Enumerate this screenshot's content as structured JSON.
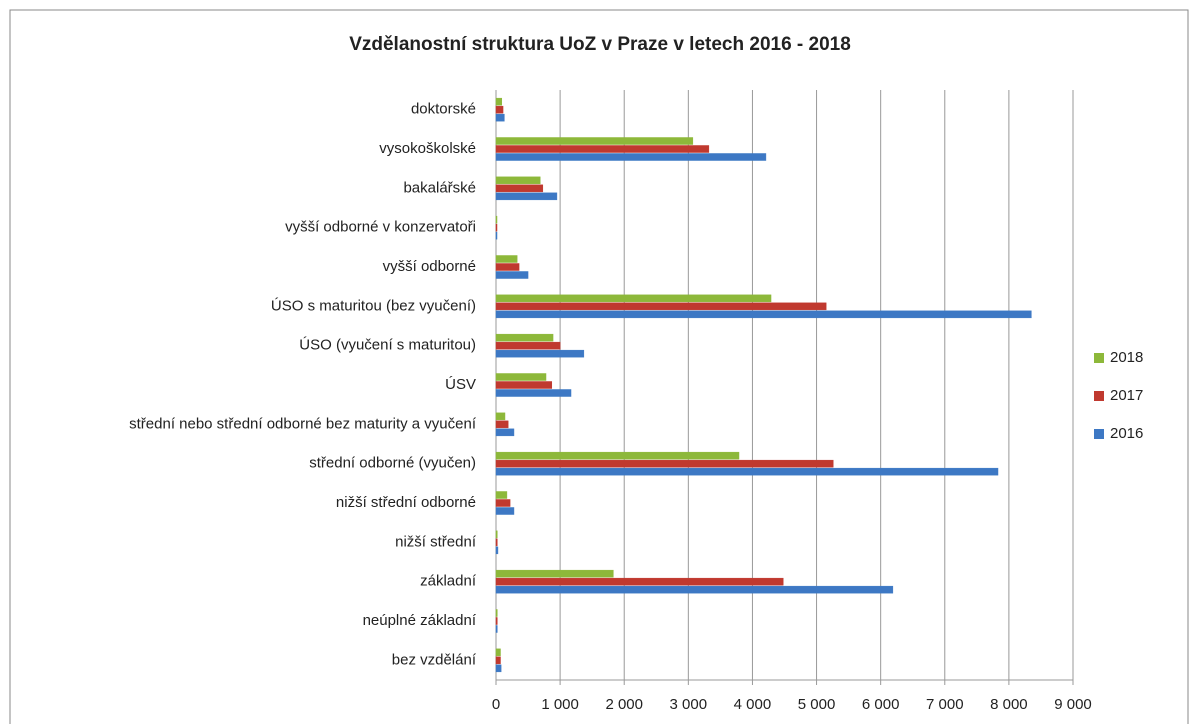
{
  "chart_data": {
    "type": "bar",
    "orientation": "horizontal",
    "title": "Vzdělanostní struktura UoZ v Praze v letech 2016 - 2018",
    "categories": [
      "doktorské",
      "vysokoškolské",
      "bakalářské",
      "vyšší odborné v konzervatoři",
      "vyšší odborné",
      "ÚSO s maturitou (bez vyučení)",
      "ÚSO (vyučení s maturitou)",
      "ÚSV",
      "střední nebo střední odborné bez maturity a vyučení",
      "střední odborné (vyučen)",
      "nižší střední odborné",
      "nižší střední",
      "základní",
      "neúplné základní",
      "bez vzdělání"
    ],
    "series": [
      {
        "name": "2018",
        "color": "#8db83a",
        "values": [
          90,
          3070,
          690,
          10,
          330,
          4290,
          890,
          780,
          140,
          3790,
          170,
          20,
          1830,
          20,
          70
        ]
      },
      {
        "name": "2017",
        "color": "#c0392f",
        "values": [
          110,
          3320,
          730,
          10,
          360,
          5150,
          1000,
          870,
          190,
          5260,
          220,
          20,
          4480,
          20,
          70
        ]
      },
      {
        "name": "2016",
        "color": "#3d78c4",
        "values": [
          130,
          4210,
          950,
          10,
          500,
          8350,
          1370,
          1170,
          280,
          7830,
          280,
          30,
          6190,
          20,
          80
        ]
      }
    ],
    "xlim": [
      0,
      9000
    ],
    "xticks": [
      0,
      {
        "value": 1000,
        "label": "1 000"
      },
      {
        "value": 2000,
        "label": "2 000"
      },
      {
        "value": 3000,
        "label": "3 000"
      },
      {
        "value": 4000,
        "label": "4 000"
      },
      {
        "value": 5000,
        "label": "5 000"
      },
      {
        "value": 6000,
        "label": "6 000"
      },
      {
        "value": 7000,
        "label": "7 000"
      },
      {
        "value": 8000,
        "label": "8 000"
      },
      {
        "value": 9000,
        "label": "9 000"
      }
    ],
    "grid": true,
    "legend": "right"
  }
}
